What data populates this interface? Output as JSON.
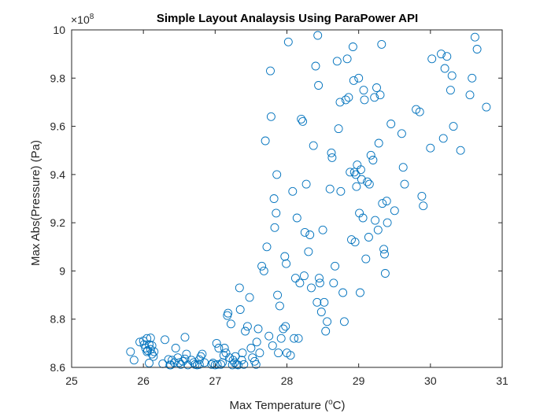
{
  "chart_data": {
    "type": "scatter",
    "title": "Simple Layout Analaysis Using ParaPower API",
    "xlabel_main": "Max Temperature (",
    "xlabel_sup": "o",
    "xlabel_end": "C)",
    "ylabel": "Max Abs(Pressure) (Pa)",
    "y_exponent_base": "×10",
    "y_exponent_power": "8",
    "xlim": [
      25,
      31
    ],
    "ylim": [
      8.6,
      10
    ],
    "x_ticks": [
      25,
      26,
      27,
      28,
      29,
      30,
      31
    ],
    "y_ticks": [
      8.6,
      8.8,
      9,
      9.2,
      9.4,
      9.6,
      9.8,
      10
    ],
    "x_tick_labels": [
      "25",
      "26",
      "27",
      "28",
      "29",
      "30",
      "31"
    ],
    "y_tick_labels": [
      "8.6",
      "8.8",
      "9",
      "9.2",
      "9.4",
      "9.6",
      "9.8",
      "10"
    ],
    "marker": "circle-open",
    "marker_color": "#0072BD",
    "box": true,
    "grid": false,
    "points": [
      [
        25.82,
        8.665
      ],
      [
        25.87,
        8.63
      ],
      [
        25.95,
        8.705
      ],
      [
        26.0,
        8.71
      ],
      [
        26.01,
        8.695
      ],
      [
        26.03,
        8.68
      ],
      [
        26.05,
        8.72
      ],
      [
        26.06,
        8.67
      ],
      [
        26.08,
        8.695
      ],
      [
        26.1,
        8.722
      ],
      [
        26.12,
        8.69
      ],
      [
        26.1,
        8.675
      ],
      [
        26.12,
        8.655
      ],
      [
        26.14,
        8.645
      ],
      [
        26.08,
        8.618
      ],
      [
        26.15,
        8.665
      ],
      [
        26.05,
        8.665
      ],
      [
        26.3,
        8.715
      ],
      [
        26.27,
        8.615
      ],
      [
        26.35,
        8.633
      ],
      [
        26.37,
        8.61
      ],
      [
        26.4,
        8.63
      ],
      [
        26.43,
        8.62
      ],
      [
        26.38,
        8.61
      ],
      [
        26.45,
        8.68
      ],
      [
        26.48,
        8.64
      ],
      [
        26.5,
        8.62
      ],
      [
        26.52,
        8.612
      ],
      [
        26.55,
        8.625
      ],
      [
        26.58,
        8.635
      ],
      [
        26.6,
        8.655
      ],
      [
        26.62,
        8.61
      ],
      [
        26.58,
        8.725
      ],
      [
        26.67,
        8.63
      ],
      [
        26.7,
        8.62
      ],
      [
        26.72,
        8.612
      ],
      [
        26.75,
        8.61
      ],
      [
        26.78,
        8.632
      ],
      [
        26.8,
        8.645
      ],
      [
        26.82,
        8.655
      ],
      [
        26.78,
        8.612
      ],
      [
        26.85,
        8.62
      ],
      [
        26.95,
        8.612
      ],
      [
        26.97,
        8.618
      ],
      [
        27.0,
        8.61
      ],
      [
        27.02,
        8.7
      ],
      [
        27.05,
        8.68
      ],
      [
        27.03,
        8.612
      ],
      [
        27.08,
        8.612
      ],
      [
        27.1,
        8.62
      ],
      [
        27.12,
        8.65
      ],
      [
        27.13,
        8.68
      ],
      [
        27.15,
        8.66
      ],
      [
        27.17,
        8.815
      ],
      [
        27.18,
        8.825
      ],
      [
        27.2,
        8.64
      ],
      [
        27.22,
        8.78
      ],
      [
        27.24,
        8.61
      ],
      [
        27.25,
        8.63
      ],
      [
        27.27,
        8.62
      ],
      [
        27.28,
        8.645
      ],
      [
        27.3,
        8.612
      ],
      [
        27.32,
        8.61
      ],
      [
        27.34,
        8.93
      ],
      [
        27.35,
        8.84
      ],
      [
        27.37,
        8.63
      ],
      [
        27.38,
        8.66
      ],
      [
        27.4,
        8.612
      ],
      [
        27.42,
        8.75
      ],
      [
        27.45,
        8.77
      ],
      [
        27.48,
        8.89
      ],
      [
        27.5,
        8.68
      ],
      [
        27.52,
        8.64
      ],
      [
        27.55,
        8.625
      ],
      [
        27.57,
        8.612
      ],
      [
        27.58,
        8.705
      ],
      [
        27.6,
        8.76
      ],
      [
        27.62,
        8.66
      ],
      [
        27.65,
        9.02
      ],
      [
        27.68,
        9.0
      ],
      [
        27.7,
        9.54
      ],
      [
        27.72,
        9.1
      ],
      [
        27.75,
        8.73
      ],
      [
        27.77,
        9.83
      ],
      [
        27.78,
        9.64
      ],
      [
        27.8,
        8.69
      ],
      [
        27.82,
        9.3
      ],
      [
        27.83,
        9.18
      ],
      [
        27.85,
        9.24
      ],
      [
        27.86,
        9.4
      ],
      [
        27.87,
        8.9
      ],
      [
        27.88,
        8.66
      ],
      [
        27.9,
        8.855
      ],
      [
        27.92,
        8.72
      ],
      [
        27.95,
        8.76
      ],
      [
        27.97,
        9.06
      ],
      [
        27.98,
        8.77
      ],
      [
        27.99,
        9.03
      ],
      [
        28.0,
        8.66
      ],
      [
        28.02,
        9.95
      ],
      [
        28.05,
        8.65
      ],
      [
        28.08,
        9.33
      ],
      [
        28.1,
        8.72
      ],
      [
        28.12,
        8.97
      ],
      [
        28.14,
        9.22
      ],
      [
        28.16,
        8.72
      ],
      [
        28.18,
        8.95
      ],
      [
        28.2,
        9.63
      ],
      [
        28.22,
        9.62
      ],
      [
        28.24,
        8.98
      ],
      [
        28.25,
        9.16
      ],
      [
        28.27,
        9.36
      ],
      [
        28.3,
        9.08
      ],
      [
        28.32,
        9.15
      ],
      [
        28.34,
        8.93
      ],
      [
        28.37,
        9.52
      ],
      [
        28.4,
        9.85
      ],
      [
        28.42,
        8.87
      ],
      [
        28.43,
        9.977
      ],
      [
        28.44,
        9.77
      ],
      [
        28.45,
        8.97
      ],
      [
        28.46,
        8.95
      ],
      [
        28.48,
        8.83
      ],
      [
        28.5,
        9.17
      ],
      [
        28.52,
        8.87
      ],
      [
        28.54,
        8.75
      ],
      [
        28.56,
        8.79
      ],
      [
        28.6,
        9.34
      ],
      [
        28.62,
        9.49
      ],
      [
        28.63,
        9.47
      ],
      [
        28.65,
        8.95
      ],
      [
        28.67,
        9.02
      ],
      [
        28.7,
        9.87
      ],
      [
        28.72,
        9.59
      ],
      [
        28.74,
        9.7
      ],
      [
        28.75,
        9.33
      ],
      [
        28.78,
        8.91
      ],
      [
        28.8,
        8.79
      ],
      [
        28.82,
        9.71
      ],
      [
        28.84,
        9.88
      ],
      [
        28.86,
        9.72
      ],
      [
        28.88,
        9.41
      ],
      [
        28.9,
        9.13
      ],
      [
        28.92,
        9.93
      ],
      [
        28.93,
        9.79
      ],
      [
        28.94,
        9.41
      ],
      [
        28.95,
        9.12
      ],
      [
        28.96,
        9.4
      ],
      [
        28.97,
        9.35
      ],
      [
        28.98,
        9.44
      ],
      [
        29.0,
        9.8
      ],
      [
        29.01,
        9.24
      ],
      [
        29.02,
        8.91
      ],
      [
        29.03,
        9.42
      ],
      [
        29.04,
        9.38
      ],
      [
        29.06,
        9.22
      ],
      [
        29.07,
        9.75
      ],
      [
        29.08,
        9.71
      ],
      [
        29.1,
        9.05
      ],
      [
        29.12,
        9.37
      ],
      [
        29.14,
        9.14
      ],
      [
        29.15,
        9.36
      ],
      [
        29.17,
        9.48
      ],
      [
        29.2,
        9.46
      ],
      [
        29.22,
        9.72
      ],
      [
        29.23,
        9.21
      ],
      [
        29.25,
        9.76
      ],
      [
        29.27,
        9.17
      ],
      [
        29.28,
        9.53
      ],
      [
        29.3,
        9.73
      ],
      [
        29.32,
        9.94
      ],
      [
        29.33,
        9.28
      ],
      [
        29.35,
        9.09
      ],
      [
        29.36,
        9.07
      ],
      [
        29.37,
        8.99
      ],
      [
        29.39,
        9.29
      ],
      [
        29.4,
        9.2
      ],
      [
        29.45,
        9.61
      ],
      [
        29.5,
        9.25
      ],
      [
        29.6,
        9.57
      ],
      [
        29.62,
        9.43
      ],
      [
        29.64,
        9.36
      ],
      [
        29.8,
        9.67
      ],
      [
        29.85,
        9.66
      ],
      [
        29.88,
        9.31
      ],
      [
        29.9,
        9.27
      ],
      [
        30.0,
        9.51
      ],
      [
        30.02,
        9.88
      ],
      [
        30.15,
        9.9
      ],
      [
        30.18,
        9.55
      ],
      [
        30.2,
        9.84
      ],
      [
        30.23,
        9.89
      ],
      [
        30.28,
        9.75
      ],
      [
        30.3,
        9.81
      ],
      [
        30.32,
        9.6
      ],
      [
        30.42,
        9.5
      ],
      [
        30.55,
        9.73
      ],
      [
        30.58,
        9.8
      ],
      [
        30.62,
        9.97
      ],
      [
        30.65,
        9.92
      ],
      [
        30.78,
        9.68
      ]
    ]
  }
}
